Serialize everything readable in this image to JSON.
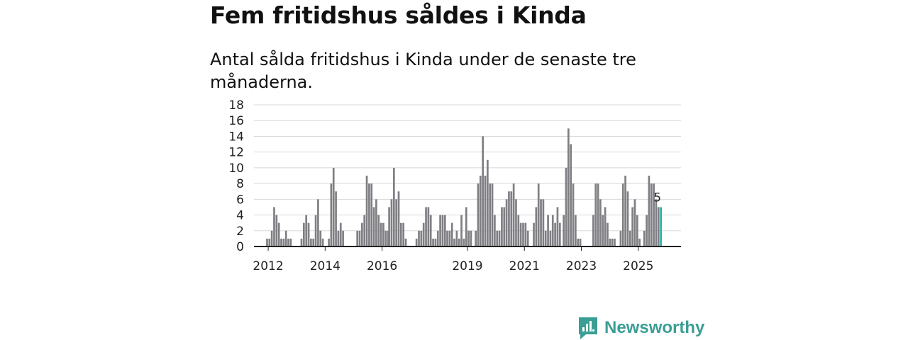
{
  "header": {
    "title": "Fem fritidshus såldes i Kinda",
    "subtitle": "Antal sålda fritidshus i Kinda under de senaste tre månaderna."
  },
  "brand": {
    "name": "Newsworthy",
    "color": "#3a9e95"
  },
  "colors": {
    "bar": "#7f7f84",
    "highlight": "#2ab0a8",
    "grid": "#d8d8d8",
    "axis": "#222222"
  },
  "chart_data": {
    "type": "bar",
    "title": "Fem fritidshus såldes i Kinda",
    "subtitle": "Antal sålda fritidshus i Kinda under de senaste tre månaderna.",
    "xlabel": "",
    "ylabel": "",
    "ylim": [
      0,
      18
    ],
    "yticks": [
      0,
      2,
      4,
      6,
      8,
      10,
      12,
      14,
      16,
      18
    ],
    "grid": true,
    "xlim": [
      2011.5,
      2026.5
    ],
    "xticks": [
      {
        "label": "2012",
        "value": 2012.0
      },
      {
        "label": "2014",
        "value": 2014.0
      },
      {
        "label": "2016",
        "value": 2016.0
      },
      {
        "label": "2019",
        "value": 2019.0
      },
      {
        "label": "2021",
        "value": 2021.0
      },
      {
        "label": "2023",
        "value": 2023.0
      },
      {
        "label": "2025",
        "value": 2025.0
      }
    ],
    "segments": [
      {
        "start": 2011.96,
        "step": 0.0833,
        "values": [
          1,
          1,
          2,
          5,
          4,
          3,
          1,
          1,
          2,
          1,
          1
        ]
      },
      {
        "start": 2013.17,
        "step": 0.0833,
        "values": [
          1,
          3,
          4,
          3,
          1,
          1,
          4,
          6,
          2,
          1
        ]
      },
      {
        "start": 2014.13,
        "step": 0.0833,
        "values": [
          1,
          8,
          10,
          7,
          2,
          3,
          2
        ]
      },
      {
        "start": 2015.13,
        "step": 0.0833,
        "values": [
          2,
          2,
          3,
          4,
          9,
          8,
          8,
          5,
          6,
          4,
          3,
          3,
          2,
          2
        ]
      },
      {
        "start": 2016.25,
        "step": 0.0833,
        "values": [
          5,
          6,
          10,
          6,
          7,
          3,
          3,
          1
        ]
      },
      {
        "start": 2017.21,
        "step": 0.0833,
        "values": [
          1,
          2,
          2,
          3,
          5,
          5,
          4,
          1,
          1,
          2,
          4,
          4,
          4
        ]
      },
      {
        "start": 2018.29,
        "step": 0.0833,
        "values": [
          2,
          2,
          3,
          1,
          2,
          1,
          4,
          1,
          5,
          2,
          2
        ]
      },
      {
        "start": 2019.29,
        "step": 0.0833,
        "values": [
          2,
          8,
          9,
          14,
          9,
          11,
          8,
          8,
          4,
          2,
          2,
          5,
          5,
          6,
          7,
          7,
          8,
          6,
          4,
          3,
          3,
          3,
          2
        ]
      },
      {
        "start": 2021.33,
        "step": 0.0833,
        "values": [
          3,
          5,
          8,
          6,
          6,
          2,
          4,
          2,
          4,
          3,
          5,
          3
        ]
      },
      {
        "start": 2022.38,
        "step": 0.0833,
        "values": [
          4,
          10,
          15,
          13,
          8,
          4,
          1,
          1
        ]
      },
      {
        "start": 2023.42,
        "step": 0.0833,
        "values": [
          4,
          8,
          8,
          6,
          4,
          5,
          3,
          1,
          1,
          1
        ]
      },
      {
        "start": 2024.38,
        "step": 0.0833,
        "values": [
          2,
          8,
          9,
          7,
          2,
          5,
          6,
          4,
          1
        ]
      },
      {
        "start": 2025.21,
        "step": 0.0833,
        "values": [
          2,
          4,
          9,
          8,
          8,
          6,
          5,
          5
        ]
      }
    ],
    "highlight": {
      "label": "5",
      "value": 5
    }
  }
}
